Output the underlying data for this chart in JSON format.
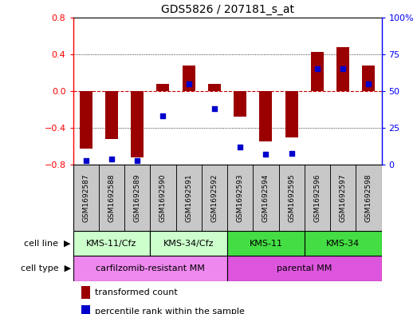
{
  "title": "GDS5826 / 207181_s_at",
  "samples": [
    "GSM1692587",
    "GSM1692588",
    "GSM1692589",
    "GSM1692590",
    "GSM1692591",
    "GSM1692592",
    "GSM1692593",
    "GSM1692594",
    "GSM1692595",
    "GSM1692596",
    "GSM1692597",
    "GSM1692598"
  ],
  "transformed_count": [
    -0.62,
    -0.52,
    -0.72,
    0.08,
    0.28,
    0.08,
    -0.28,
    -0.55,
    -0.5,
    0.42,
    0.48,
    0.28
  ],
  "percentile_rank": [
    3,
    4,
    3,
    33,
    55,
    38,
    12,
    7,
    8,
    65,
    65,
    55
  ],
  "ylim_left": [
    -0.8,
    0.8
  ],
  "ylim_right": [
    0,
    100
  ],
  "yticks_left": [
    -0.8,
    -0.4,
    0.0,
    0.4,
    0.8
  ],
  "yticks_right": [
    0,
    25,
    50,
    75,
    100
  ],
  "ytick_labels_right": [
    "0",
    "25",
    "50",
    "75",
    "100%"
  ],
  "bar_color": "#9B0000",
  "dot_color": "#0000CC",
  "zero_line_color": "#CC0000",
  "grid_color": "#000000",
  "cell_line_groups": [
    {
      "label": "KMS-11/Cfz",
      "start": 0,
      "end": 3,
      "color": "#CCFFCC"
    },
    {
      "label": "KMS-34/Cfz",
      "start": 3,
      "end": 6,
      "color": "#CCFFCC"
    },
    {
      "label": "KMS-11",
      "start": 6,
      "end": 9,
      "color": "#44DD44"
    },
    {
      "label": "KMS-34",
      "start": 9,
      "end": 12,
      "color": "#44DD44"
    }
  ],
  "cell_type_groups": [
    {
      "label": "carfilzomib-resistant MM",
      "start": 0,
      "end": 6,
      "color": "#EE88EE"
    },
    {
      "label": "parental MM",
      "start": 6,
      "end": 12,
      "color": "#DD55DD"
    }
  ],
  "sample_box_color": "#C8C8C8",
  "legend_items": [
    {
      "color": "#9B0000",
      "label": "transformed count"
    },
    {
      "color": "#0000CC",
      "label": "percentile rank within the sample"
    }
  ]
}
